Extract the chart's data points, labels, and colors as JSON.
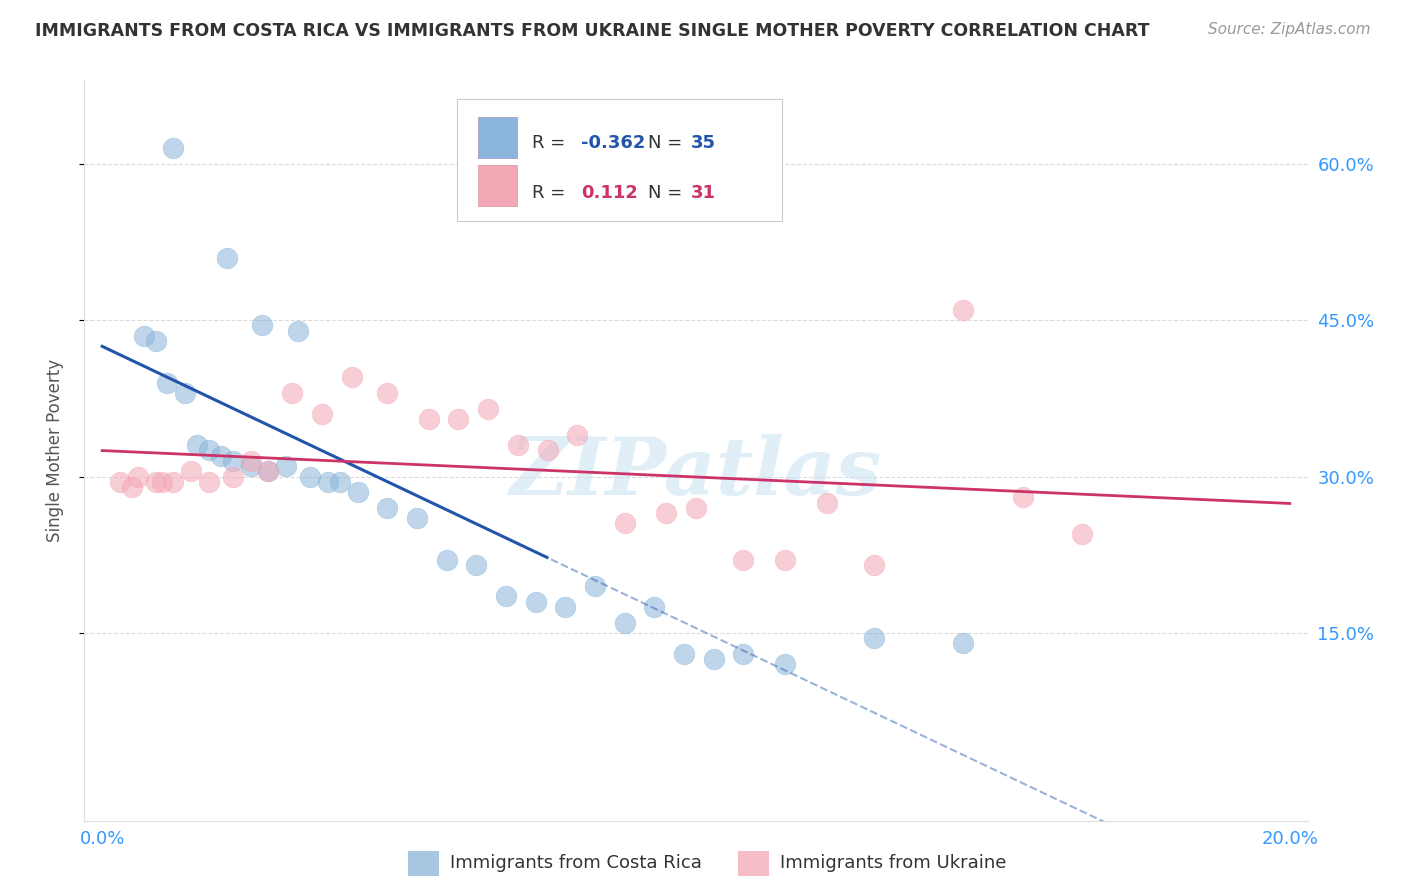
{
  "title": "IMMIGRANTS FROM COSTA RICA VS IMMIGRANTS FROM UKRAINE SINGLE MOTHER POVERTY CORRELATION CHART",
  "source": "Source: ZipAtlas.com",
  "ylabel": "Single Mother Poverty",
  "xlim": [
    0.0,
    0.2
  ],
  "ylim": [
    0.0,
    0.66
  ],
  "ytick_vals": [
    0.15,
    0.3,
    0.45,
    0.6
  ],
  "ytick_labels": [
    "15.0%",
    "30.0%",
    "45.0%",
    "60.0%"
  ],
  "xtick_vals": [
    0.0,
    0.2
  ],
  "xtick_labels": [
    "0.0%",
    "20.0%"
  ],
  "costa_rica_color": "#8ab4d9",
  "ukraine_color": "#f4a7b5",
  "trend_color_cr": "#2255aa",
  "trend_color_ua": "#cc3366",
  "background_color": "#ffffff",
  "grid_color": "#cccccc",
  "watermark": "ZIPatlas",
  "tick_label_color": "#3399ff",
  "title_color": "#333333",
  "source_color": "#999999",
  "ylabel_color": "#555555",
  "legend_text_color": "#333333",
  "cr_R_color": "#2255aa",
  "ua_R_color": "#cc3366",
  "cr_R": "-0.362",
  "cr_N": "35",
  "ua_R": "0.112",
  "ua_N": "31",
  "costa_rica_x": [
    0.012,
    0.021,
    0.027,
    0.033,
    0.007,
    0.009,
    0.011,
    0.014,
    0.016,
    0.018,
    0.02,
    0.022,
    0.025,
    0.028,
    0.031,
    0.035,
    0.038,
    0.04,
    0.043,
    0.048,
    0.053,
    0.058,
    0.063,
    0.068,
    0.073,
    0.078,
    0.083,
    0.088,
    0.093,
    0.098,
    0.103,
    0.108,
    0.115,
    0.13,
    0.145
  ],
  "costa_rica_y": [
    0.615,
    0.51,
    0.445,
    0.44,
    0.435,
    0.43,
    0.39,
    0.38,
    0.33,
    0.325,
    0.32,
    0.315,
    0.31,
    0.305,
    0.31,
    0.3,
    0.295,
    0.295,
    0.285,
    0.27,
    0.26,
    0.22,
    0.215,
    0.185,
    0.18,
    0.175,
    0.195,
    0.16,
    0.175,
    0.13,
    0.125,
    0.13,
    0.12,
    0.145,
    0.14
  ],
  "ukraine_x": [
    0.003,
    0.006,
    0.009,
    0.012,
    0.015,
    0.018,
    0.022,
    0.025,
    0.028,
    0.032,
    0.037,
    0.042,
    0.048,
    0.055,
    0.06,
    0.065,
    0.07,
    0.075,
    0.08,
    0.088,
    0.095,
    0.1,
    0.108,
    0.115,
    0.122,
    0.13,
    0.145,
    0.155,
    0.165,
    0.005,
    0.01
  ],
  "ukraine_y": [
    0.295,
    0.3,
    0.295,
    0.295,
    0.305,
    0.295,
    0.3,
    0.315,
    0.305,
    0.38,
    0.36,
    0.395,
    0.38,
    0.355,
    0.355,
    0.365,
    0.33,
    0.325,
    0.34,
    0.255,
    0.265,
    0.27,
    0.22,
    0.22,
    0.275,
    0.215,
    0.46,
    0.28,
    0.245,
    0.29,
    0.295
  ]
}
